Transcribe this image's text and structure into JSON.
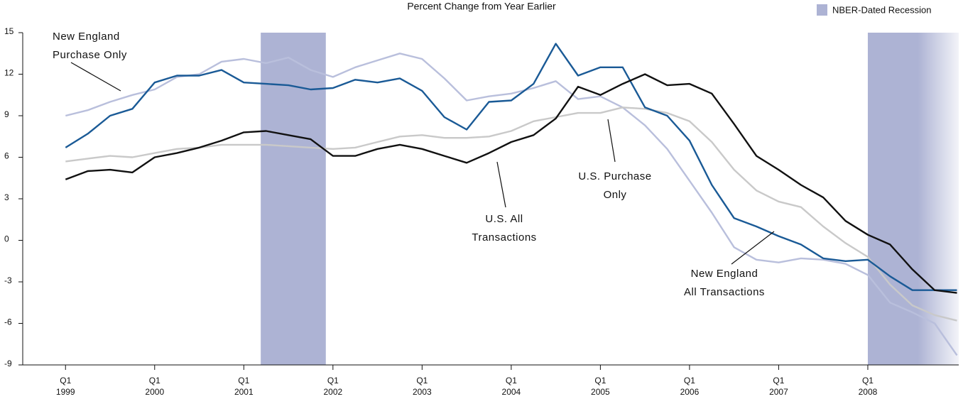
{
  "chart_data": {
    "type": "line",
    "title": "Percent Change from Year Earlier",
    "x": [
      1999,
      1999.25,
      1999.5,
      1999.75,
      2000,
      2000.25,
      2000.5,
      2000.75,
      2001,
      2001.25,
      2001.5,
      2001.75,
      2002,
      2002.25,
      2002.5,
      2002.75,
      2003,
      2003.25,
      2003.5,
      2003.75,
      2004,
      2004.25,
      2004.5,
      2004.75,
      2005,
      2005.25,
      2005.5,
      2005.75,
      2006,
      2006.25,
      2006.5,
      2006.75,
      2007,
      2007.25,
      2007.5,
      2007.75,
      2008,
      2008.25,
      2008.5,
      2008.75,
      2009
    ],
    "series": [
      {
        "name": "New England Purchase Only",
        "color": "#b9bfdc",
        "values": [
          9.0,
          9.4,
          10.0,
          10.5,
          10.9,
          11.8,
          12.0,
          12.9,
          13.1,
          12.8,
          13.2,
          12.3,
          11.8,
          12.5,
          13.0,
          13.5,
          13.1,
          11.7,
          10.1,
          10.4,
          10.6,
          11.0,
          11.5,
          10.2,
          10.4,
          9.6,
          8.3,
          6.6,
          4.3,
          2.0,
          -0.5,
          -1.4,
          -1.6,
          -1.3,
          -1.4,
          -1.7,
          -2.5,
          -4.5,
          -5.2,
          -6.0,
          -8.3
        ]
      },
      {
        "name": "U.S. Purchase Only",
        "color": "#c9c9c9",
        "values": [
          5.7,
          5.9,
          6.1,
          6.0,
          6.3,
          6.6,
          6.7,
          6.9,
          6.9,
          6.9,
          6.8,
          6.7,
          6.6,
          6.7,
          7.1,
          7.5,
          7.6,
          7.4,
          7.4,
          7.5,
          7.9,
          8.6,
          8.9,
          9.2,
          9.2,
          9.6,
          9.5,
          9.2,
          8.6,
          7.1,
          5.1,
          3.6,
          2.8,
          2.4,
          1.0,
          -0.2,
          -1.2,
          -3.2,
          -4.7,
          -5.4,
          -5.8
        ]
      },
      {
        "name": "New England All Transactions",
        "color": "#1a5a96",
        "values": [
          6.7,
          7.7,
          9.0,
          9.5,
          11.4,
          11.9,
          11.9,
          12.3,
          11.4,
          11.3,
          11.2,
          10.9,
          11.0,
          11.6,
          11.4,
          11.7,
          10.8,
          8.9,
          8.0,
          10.0,
          10.1,
          11.3,
          14.2,
          11.9,
          12.5,
          12.5,
          9.6,
          9.0,
          7.2,
          4.0,
          1.6,
          1.0,
          0.3,
          -0.3,
          -1.3,
          -1.5,
          -1.4,
          -2.6,
          -3.6,
          -3.6,
          -3.6
        ]
      },
      {
        "name": "U.S. All Transactions",
        "color": "#111111",
        "values": [
          4.4,
          5.0,
          5.1,
          4.9,
          6.0,
          6.3,
          6.7,
          7.2,
          7.8,
          7.9,
          7.6,
          7.3,
          6.1,
          6.1,
          6.6,
          6.9,
          6.6,
          6.1,
          5.6,
          6.3,
          7.1,
          7.6,
          8.8,
          11.1,
          10.5,
          11.3,
          12.0,
          11.2,
          11.3,
          10.6,
          8.4,
          6.1,
          5.1,
          4.0,
          3.1,
          1.4,
          0.4,
          -0.3,
          -2.1,
          -3.6,
          -3.8
        ]
      }
    ],
    "annotations": [
      {
        "lines": [
          "New England",
          "Purchase Only"
        ]
      },
      {
        "lines": [
          "U.S. All",
          "Transactions"
        ]
      },
      {
        "lines": [
          "U.S. Purchase",
          "Only"
        ]
      },
      {
        "lines": [
          "New England",
          "All Transactions"
        ]
      }
    ],
    "recession": {
      "name": "NBER-Dated Recession",
      "color": "#adb3d4",
      "periods": [
        [
          2001.19,
          2001.92
        ],
        [
          2008.0,
          2009.02
        ]
      ]
    },
    "xlim": [
      1998.52,
      2009.02
    ],
    "xticks": [
      {
        "value": 1999,
        "label": [
          "Q1",
          "1999"
        ]
      },
      {
        "value": 2000,
        "label": [
          "Q1",
          "2000"
        ]
      },
      {
        "value": 2001,
        "label": [
          "Q1",
          "2001"
        ]
      },
      {
        "value": 2002,
        "label": [
          "Q1",
          "2002"
        ]
      },
      {
        "value": 2003,
        "label": [
          "Q1",
          "2003"
        ]
      },
      {
        "value": 2004,
        "label": [
          "Q1",
          "2004"
        ]
      },
      {
        "value": 2005,
        "label": [
          "Q1",
          "2005"
        ]
      },
      {
        "value": 2006,
        "label": [
          "Q1",
          "2006"
        ]
      },
      {
        "value": 2007,
        "label": [
          "Q1",
          "2007"
        ]
      },
      {
        "value": 2008,
        "label": [
          "Q1",
          "2008"
        ]
      }
    ],
    "ylim": [
      -9,
      15
    ],
    "yticks": [
      15,
      12,
      9,
      6,
      3,
      0,
      -3,
      -6,
      -9
    ]
  }
}
